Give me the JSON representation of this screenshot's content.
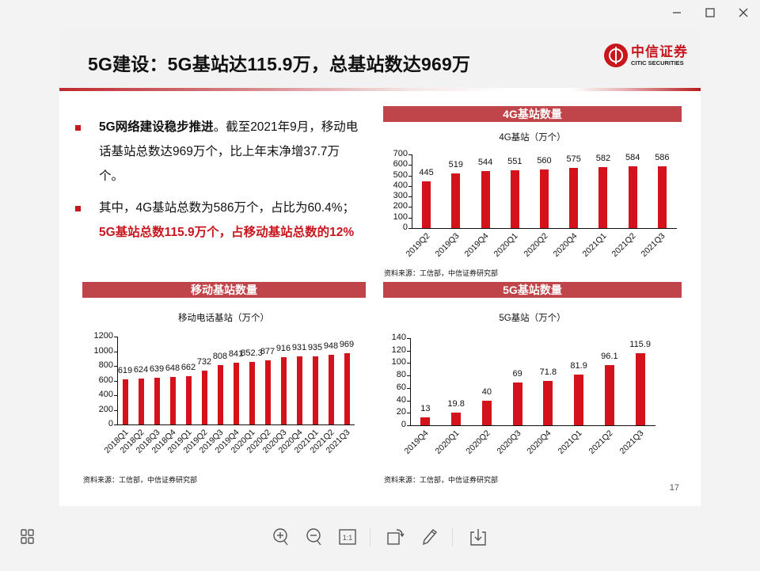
{
  "window": {
    "controls": {
      "minimize": "minimize",
      "maximize": "maximize",
      "close": "close"
    }
  },
  "slide": {
    "title": "5G建设：5G基站达115.9万，总基站数达969万",
    "logo": {
      "cn": "中信证券",
      "en": "CITIC SECURITIES"
    },
    "bullets": [
      {
        "bold": "5G网络建设稳步推进",
        "text": "。截至2021年9月，移动电话基站总数达969万个，比上年末净增37.7万个。"
      },
      {
        "text": "其中，4G基站总数为586万个，占比为60.4%；",
        "red": "5G基站总数115.9万个，占移动基站总数的12%"
      }
    ],
    "page_number": "17",
    "accent_color": "#c8161d",
    "panel_color": "#c0454a"
  },
  "chart_data": [
    {
      "type": "bar",
      "panel_title": "4G基站数量",
      "title": "4G基站（万个）",
      "categories": [
        "2019Q2",
        "2019Q3",
        "2019Q4",
        "2020Q1",
        "2020Q2",
        "2020Q4",
        "2021Q1",
        "2021Q2",
        "2021Q3"
      ],
      "values": [
        445,
        519,
        544,
        551,
        560,
        575,
        582,
        584,
        586
      ],
      "ylim": [
        0,
        700
      ],
      "yticks": [
        0,
        100,
        200,
        300,
        400,
        500,
        600,
        700
      ],
      "xlabel": "",
      "ylabel": "",
      "source": "资料来源：工信部，中信证券研究部",
      "color": "#d3121b"
    },
    {
      "type": "bar",
      "panel_title": "移动基站数量",
      "title": "移动电话基站（万个）",
      "categories": [
        "2018Q1",
        "2018Q2",
        "2018Q3",
        "2018Q4",
        "2019Q1",
        "2019Q2",
        "2019Q3",
        "2019Q4",
        "2020Q1",
        "2020Q2",
        "2020Q3",
        "2020Q4",
        "2021Q1",
        "2021Q2",
        "2021Q3"
      ],
      "values": [
        619,
        624,
        639,
        648,
        662,
        732,
        808,
        841,
        852.3,
        877,
        916,
        931,
        935,
        948,
        969
      ],
      "ylim": [
        0,
        1200
      ],
      "yticks": [
        0,
        200,
        400,
        600,
        800,
        1000,
        1200
      ],
      "xlabel": "",
      "ylabel": "",
      "source": "资料来源：工信部，中信证券研究部",
      "color": "#d3121b"
    },
    {
      "type": "bar",
      "panel_title": "5G基站数量",
      "title": "5G基站（万个）",
      "categories": [
        "2019Q4",
        "2020Q1",
        "2020Q2",
        "2020Q3",
        "2020Q4",
        "2021Q1",
        "2021Q2",
        "2021Q3"
      ],
      "values": [
        13,
        19.8,
        40,
        69,
        71.8,
        81.9,
        96.1,
        115.9
      ],
      "ylim": [
        0,
        140
      ],
      "yticks": [
        0,
        20,
        40,
        60,
        80,
        100,
        120,
        140
      ],
      "xlabel": "",
      "ylabel": "",
      "source": "资料来源：工信部，中信证券研究部",
      "color": "#d3121b"
    }
  ],
  "toolbar": {
    "items": [
      "thumbnails",
      "zoom-in",
      "zoom-out",
      "actual-size",
      "rotate",
      "annotate",
      "save"
    ],
    "actual_size_label": "1:1"
  }
}
